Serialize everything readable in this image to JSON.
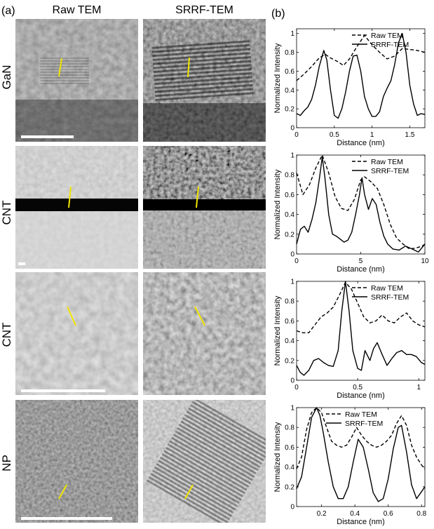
{
  "figure": {
    "panel_a_label": "(a)",
    "panel_b_label": "(b)",
    "columns": [
      "Raw TEM",
      "SRRF-TEM"
    ],
    "rows": [
      "GaN",
      "CNT",
      "CNT",
      "NP"
    ]
  },
  "colors": {
    "line_marker": "#f2e600",
    "scale_bar": "#ffffff"
  },
  "chart_data": [
    {
      "type": "line",
      "xlabel": "Distance (nm)",
      "ylabel": "Normalized Intensity",
      "xlim": [
        0,
        1.7
      ],
      "ylim": [
        0,
        1.05
      ],
      "xticks": [
        0,
        0.5,
        1,
        1.5
      ],
      "xtick_labels": [
        "0",
        "0.5",
        "1",
        "1.5"
      ],
      "yticks": [
        0,
        0.2,
        0.4,
        0.6,
        0.8,
        1
      ],
      "ytick_labels": [
        "0",
        "0.2",
        "0.4",
        "0.6",
        "0.8",
        "1"
      ],
      "legend_position": "top-right",
      "series": [
        {
          "name": "Raw TEM",
          "style": "dashed",
          "x": [
            0,
            0.1,
            0.2,
            0.3,
            0.38,
            0.45,
            0.55,
            0.62,
            0.7,
            0.8,
            0.9,
            1.0,
            1.1,
            1.2,
            1.3,
            1.4,
            1.5,
            1.6,
            1.7
          ],
          "y": [
            0.5,
            0.57,
            0.65,
            0.74,
            0.78,
            0.74,
            0.7,
            0.66,
            0.73,
            0.86,
            0.98,
            0.88,
            0.8,
            0.73,
            0.76,
            0.84,
            0.83,
            0.82,
            0.8
          ]
        },
        {
          "name": "SRRF-TEM",
          "style": "solid",
          "x": [
            0,
            0.05,
            0.1,
            0.15,
            0.2,
            0.25,
            0.3,
            0.36,
            0.4,
            0.45,
            0.5,
            0.55,
            0.6,
            0.65,
            0.7,
            0.75,
            0.8,
            0.85,
            0.9,
            0.95,
            1.0,
            1.05,
            1.1,
            1.15,
            1.2,
            1.25,
            1.3,
            1.35,
            1.4,
            1.45,
            1.5,
            1.55,
            1.6,
            1.65,
            1.7
          ],
          "y": [
            0.15,
            0.13,
            0.18,
            0.22,
            0.3,
            0.45,
            0.65,
            0.82,
            0.72,
            0.4,
            0.13,
            0.1,
            0.2,
            0.38,
            0.6,
            0.76,
            0.77,
            0.6,
            0.33,
            0.2,
            0.12,
            0.12,
            0.17,
            0.33,
            0.42,
            0.5,
            0.67,
            0.9,
            1.0,
            0.8,
            0.45,
            0.25,
            0.13,
            0.15,
            0.14
          ]
        }
      ]
    },
    {
      "type": "line",
      "xlabel": "Distance (nm)",
      "ylabel": "Normalized Intensity",
      "xlim": [
        0,
        10
      ],
      "ylim": [
        0,
        1
      ],
      "xticks": [
        0,
        5,
        10
      ],
      "xtick_labels": [
        "0",
        "5",
        "10"
      ],
      "yticks": [
        0,
        0.2,
        0.4,
        0.6,
        0.8,
        1
      ],
      "ytick_labels": [
        "0",
        "0.2",
        "0.4",
        "0.6",
        "0.8",
        "1"
      ],
      "legend_position": "top-right",
      "series": [
        {
          "name": "Raw TEM",
          "style": "dashed",
          "x": [
            0,
            0.5,
            1,
            1.5,
            2,
            2.5,
            3,
            3.5,
            4,
            4.5,
            5,
            5.3,
            5.8,
            6.3,
            6.8,
            7.3,
            7.8,
            8.3,
            8.8,
            9.3,
            9.8,
            10
          ],
          "y": [
            0.82,
            0.6,
            0.7,
            0.87,
            1.0,
            0.82,
            0.58,
            0.46,
            0.44,
            0.55,
            0.75,
            0.78,
            0.73,
            0.66,
            0.5,
            0.3,
            0.16,
            0.1,
            0.05,
            0.06,
            0.08,
            0.1
          ]
        },
        {
          "name": "SRRF-TEM",
          "style": "solid",
          "x": [
            0,
            0.3,
            0.6,
            0.9,
            1.2,
            1.5,
            1.8,
            2.0,
            2.2,
            2.5,
            2.8,
            3.1,
            3.4,
            3.7,
            4.0,
            4.3,
            4.6,
            4.9,
            5.1,
            5.3,
            5.6,
            5.9,
            6.2,
            6.5,
            6.8,
            7.1,
            7.5,
            8.0,
            8.5,
            9.0,
            9.5,
            10
          ],
          "y": [
            0.1,
            0.25,
            0.28,
            0.22,
            0.35,
            0.52,
            0.78,
            0.98,
            0.78,
            0.4,
            0.2,
            0.18,
            0.15,
            0.12,
            0.14,
            0.22,
            0.4,
            0.6,
            0.77,
            0.6,
            0.45,
            0.56,
            0.5,
            0.32,
            0.18,
            0.1,
            0.05,
            0.04,
            0.08,
            0.05,
            0.02,
            0.1
          ]
        }
      ]
    },
    {
      "type": "line",
      "xlabel": "Distance (nm)",
      "ylabel": "Normalized Intensity",
      "xlim": [
        0,
        1.05
      ],
      "ylim": [
        0,
        1
      ],
      "xticks": [
        0,
        0.5,
        1
      ],
      "xtick_labels": [
        "0",
        "0.5",
        "1"
      ],
      "yticks": [
        0,
        0.2,
        0.4,
        0.6,
        0.8,
        1
      ],
      "ytick_labels": [
        "0",
        "0.2",
        "0.4",
        "0.6",
        "0.8",
        "1"
      ],
      "legend_position": "top-right",
      "series": [
        {
          "name": "Raw TEM",
          "style": "dashed",
          "x": [
            0,
            0.05,
            0.1,
            0.15,
            0.2,
            0.25,
            0.3,
            0.35,
            0.4,
            0.45,
            0.5,
            0.55,
            0.6,
            0.65,
            0.7,
            0.75,
            0.8,
            0.85,
            0.9,
            0.95,
            1.0,
            1.05
          ],
          "y": [
            0.5,
            0.48,
            0.48,
            0.56,
            0.64,
            0.68,
            0.74,
            0.86,
            0.99,
            0.92,
            0.78,
            0.64,
            0.58,
            0.6,
            0.66,
            0.6,
            0.58,
            0.64,
            0.68,
            0.6,
            0.56,
            0.54
          ]
        },
        {
          "name": "SRRF-TEM",
          "style": "solid",
          "x": [
            0,
            0.03,
            0.06,
            0.1,
            0.14,
            0.18,
            0.22,
            0.26,
            0.3,
            0.34,
            0.37,
            0.4,
            0.43,
            0.46,
            0.5,
            0.53,
            0.56,
            0.6,
            0.63,
            0.66,
            0.7,
            0.74,
            0.78,
            0.82,
            0.86,
            0.9,
            0.94,
            0.98,
            1.02,
            1.05
          ],
          "y": [
            0.15,
            0.08,
            0.05,
            0.1,
            0.2,
            0.22,
            0.18,
            0.15,
            0.14,
            0.3,
            0.7,
            1.0,
            0.7,
            0.3,
            0.12,
            0.1,
            0.3,
            0.2,
            0.32,
            0.38,
            0.26,
            0.15,
            0.22,
            0.28,
            0.3,
            0.26,
            0.26,
            0.24,
            0.18,
            0.16
          ]
        }
      ]
    },
    {
      "type": "line",
      "xlabel": "Distance (nm)",
      "ylabel": "Normalized Intensity",
      "xlim": [
        0.05,
        0.82
      ],
      "ylim": [
        0,
        1
      ],
      "xticks": [
        0.2,
        0.4,
        0.6,
        0.8
      ],
      "xtick_labels": [
        "0.2",
        "0.4",
        "0.6",
        "0.8"
      ],
      "yticks": [
        0,
        0.2,
        0.4,
        0.6,
        0.8,
        1
      ],
      "ytick_labels": [
        "0",
        "0.2",
        "0.4",
        "0.6",
        "0.8",
        "1"
      ],
      "legend_position": "top-right",
      "series": [
        {
          "name": "Raw TEM",
          "style": "dashed",
          "x": [
            0.05,
            0.08,
            0.11,
            0.14,
            0.17,
            0.2,
            0.23,
            0.26,
            0.29,
            0.32,
            0.35,
            0.38,
            0.41,
            0.44,
            0.47,
            0.5,
            0.53,
            0.56,
            0.59,
            0.62,
            0.65,
            0.68,
            0.71,
            0.74,
            0.77,
            0.8,
            0.82
          ],
          "y": [
            0.38,
            0.5,
            0.78,
            0.95,
            1.0,
            0.95,
            0.8,
            0.66,
            0.62,
            0.6,
            0.62,
            0.7,
            0.8,
            0.72,
            0.66,
            0.62,
            0.6,
            0.62,
            0.66,
            0.72,
            0.84,
            0.92,
            0.82,
            0.62,
            0.5,
            0.42,
            0.38
          ]
        },
        {
          "name": "SRRF-TEM",
          "style": "solid",
          "x": [
            0.05,
            0.08,
            0.11,
            0.14,
            0.17,
            0.19,
            0.21,
            0.24,
            0.27,
            0.3,
            0.33,
            0.36,
            0.39,
            0.42,
            0.45,
            0.48,
            0.51,
            0.54,
            0.57,
            0.6,
            0.63,
            0.66,
            0.68,
            0.71,
            0.74,
            0.77,
            0.8,
            0.82
          ],
          "y": [
            0.18,
            0.3,
            0.6,
            0.9,
            1.0,
            0.92,
            0.75,
            0.45,
            0.2,
            0.08,
            0.08,
            0.2,
            0.45,
            0.68,
            0.6,
            0.38,
            0.14,
            0.05,
            0.08,
            0.28,
            0.58,
            0.8,
            0.82,
            0.55,
            0.22,
            0.08,
            0.15,
            0.2
          ]
        }
      ]
    }
  ]
}
